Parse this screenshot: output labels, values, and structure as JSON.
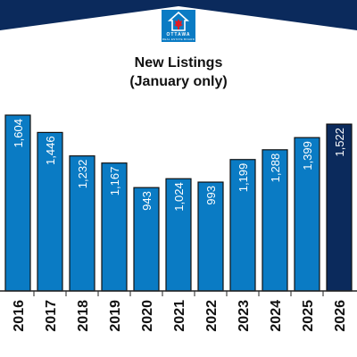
{
  "logo": {
    "line1": "OTTAWA",
    "line2": "REAL ESTATE BOARD"
  },
  "colors": {
    "header_navy": "#0b2a5c",
    "bar_blue": "#0a7bc4",
    "bar_highlight": "#0b2a5c",
    "axis": "#222222"
  },
  "chart_data": {
    "type": "bar",
    "title": "New Listings",
    "subtitle": "(January only)",
    "xlabel": "",
    "ylabel": "",
    "categories": [
      "2016",
      "2017",
      "2018",
      "2019",
      "2020",
      "2021",
      "2022",
      "2023",
      "2024",
      "2025",
      "2026"
    ],
    "values": [
      1604,
      1446,
      1232,
      1167,
      943,
      1024,
      993,
      1199,
      1288,
      1399,
      1522
    ],
    "labels": [
      "1,604",
      "1,446",
      "1,232",
      "1,167",
      "943",
      "1,024",
      "993",
      "1,199",
      "1,288",
      "1,399",
      "1,522"
    ],
    "highlight_index": 10,
    "grid": false,
    "legend": "none"
  }
}
